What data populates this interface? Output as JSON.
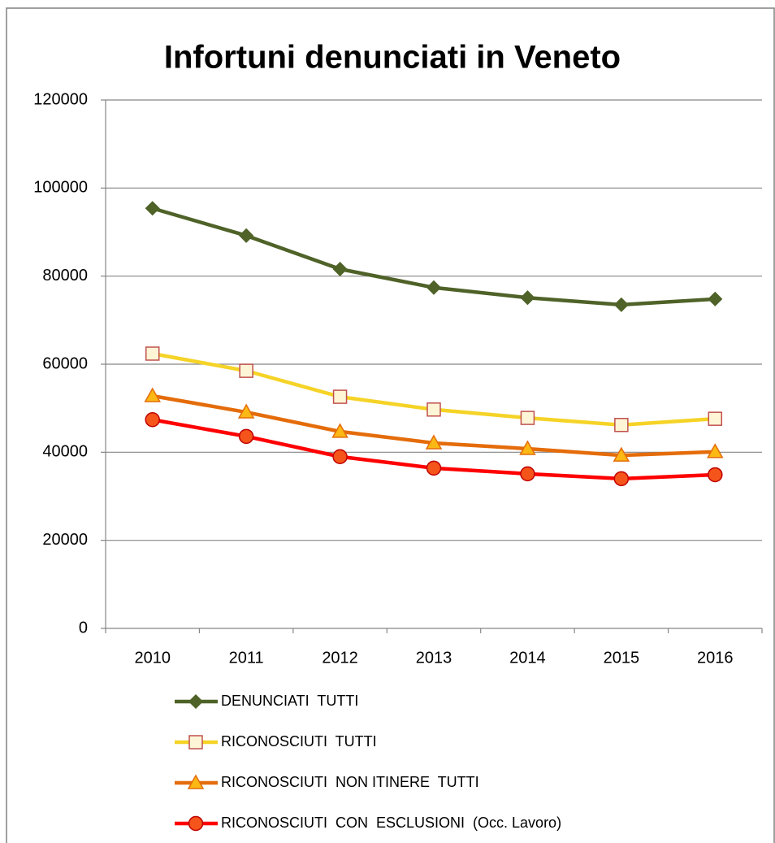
{
  "chart_data": {
    "type": "line",
    "title": "Infortuni denunciati in Veneto",
    "categories": [
      "2010",
      "2011",
      "2012",
      "2013",
      "2014",
      "2015",
      "2016"
    ],
    "series": [
      {
        "name": "DENUNCIATI  TUTTI",
        "color": "#4f6228",
        "marker": "diamond",
        "marker_fill": "#4f6228",
        "marker_stroke": "#4f6228",
        "values": [
          95400,
          89200,
          81600,
          77400,
          75100,
          73500,
          74800
        ]
      },
      {
        "name": "RICONOSCIUTI  TUTTI",
        "color": "#f5d327",
        "marker": "square",
        "marker_fill": "#fdf5d6",
        "marker_stroke": "#c0504d",
        "values": [
          62400,
          58500,
          52600,
          49700,
          47800,
          46200,
          47600
        ]
      },
      {
        "name": "RICONOSCIUTI  NON ITINERE  TUTTI",
        "color": "#e46c0a",
        "marker": "triangle",
        "marker_fill": "#fcb814",
        "marker_stroke": "#e46c0a",
        "values": [
          52800,
          49100,
          44700,
          42100,
          40800,
          39300,
          40100
        ]
      },
      {
        "name": "RICONOSCIUTI  CON  ESCLUSIONI  (Occ. Lavoro)",
        "color": "#ff0000",
        "marker": "circle",
        "marker_fill": "#f5541b",
        "marker_stroke": "#c00000",
        "values": [
          47400,
          43600,
          39000,
          36400,
          35100,
          34000,
          34900
        ]
      }
    ],
    "ylim": [
      0,
      120000
    ],
    "yticks": [
      0,
      20000,
      40000,
      60000,
      80000,
      100000,
      120000
    ],
    "grid": true,
    "legend": "bottom"
  }
}
